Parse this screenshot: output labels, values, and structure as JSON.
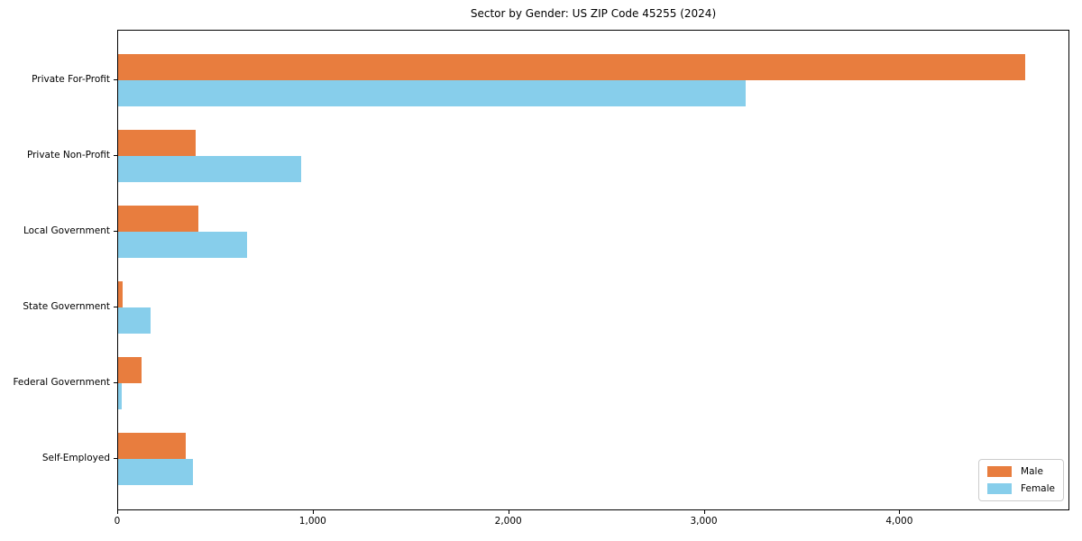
{
  "chart_data": {
    "type": "bar",
    "orientation": "horizontal",
    "title": "Sector by Gender: US ZIP Code 45255 (2024)",
    "xlabel": "",
    "ylabel": "",
    "categories": [
      "Private For-Profit",
      "Private Non-Profit",
      "Local Government",
      "State Government",
      "Federal Government",
      "Self-Employed"
    ],
    "series": [
      {
        "name": "Male",
        "color": "#e87d3e",
        "values": [
          4640,
          395,
          410,
          25,
          120,
          345
        ]
      },
      {
        "name": "Female",
        "color": "#87ceeb",
        "values": [
          3210,
          935,
          660,
          165,
          20,
          385
        ]
      }
    ],
    "xlim": [
      0,
      4870
    ],
    "x_ticks": [
      0,
      1000,
      2000,
      3000,
      4000
    ],
    "x_tick_labels": [
      "0",
      "1,000",
      "2,000",
      "3,000",
      "4,000"
    ],
    "grid": false,
    "legend_position": "lower right"
  },
  "colors": {
    "male": "#e87d3e",
    "female": "#87ceeb",
    "axis": "#000000",
    "background": "#ffffff",
    "legend_border": "#cccccc"
  }
}
